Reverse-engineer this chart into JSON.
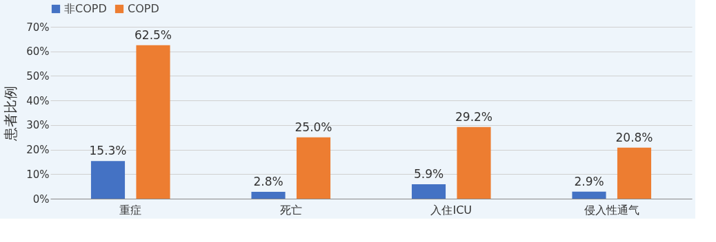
{
  "chart_data": {
    "type": "bar",
    "ylabel": "患者比例",
    "categories": [
      "重症",
      "死亡",
      "入住ICU",
      "侵入性通气"
    ],
    "series": [
      {
        "name": "非COPD",
        "color": "#4472c4",
        "values": [
          15.3,
          2.8,
          5.9,
          2.9
        ],
        "value_labels": [
          "15.3%",
          "2.8%",
          "5.9%",
          "2.9%"
        ]
      },
      {
        "name": "COPD",
        "color": "#ed7d31",
        "values": [
          62.5,
          25.0,
          29.2,
          20.8
        ],
        "value_labels": [
          "62.5%",
          "25.0%",
          "29.2%",
          "20.8%"
        ]
      }
    ],
    "ylim": [
      0,
      70
    ],
    "yticks": [
      {
        "value": 0,
        "label": "0%"
      },
      {
        "value": 10,
        "label": "10%"
      },
      {
        "value": 20,
        "label": "20%"
      },
      {
        "value": 30,
        "label": "30%"
      },
      {
        "value": 40,
        "label": "40%"
      },
      {
        "value": 50,
        "label": "50%"
      },
      {
        "value": 60,
        "label": "60%"
      },
      {
        "value": 70,
        "label": "70%"
      }
    ],
    "grid": "y",
    "legend": "top"
  }
}
